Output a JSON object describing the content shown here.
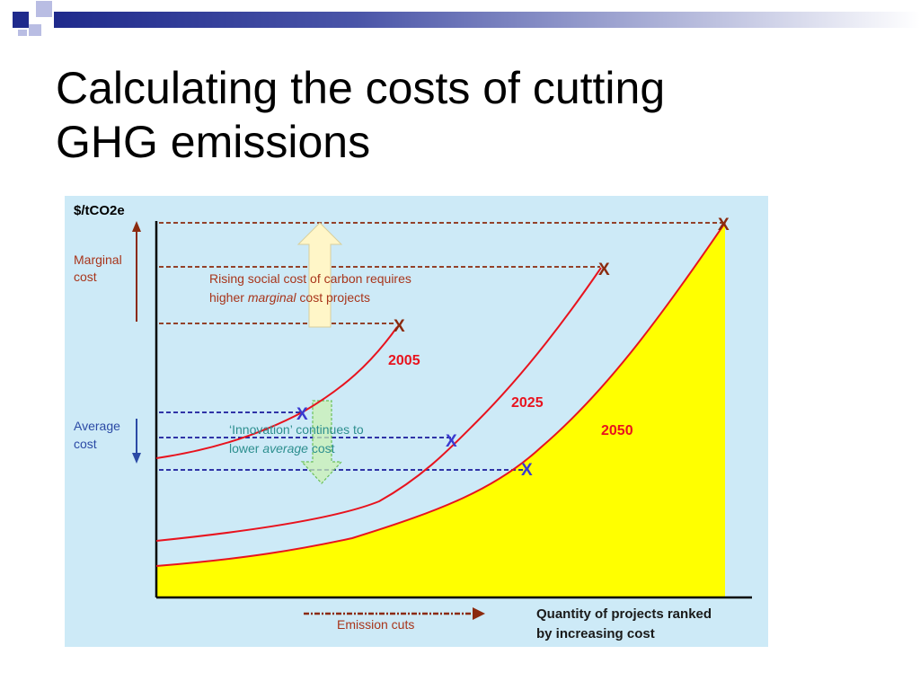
{
  "slide": {
    "title_line1": "Calculating the costs of cutting",
    "title_line2": "GHG emissions"
  },
  "figure": {
    "y_axis_label": "$/tCO2e",
    "marginal_cost_line1": "Marginal",
    "marginal_cost_line2": "cost",
    "average_cost_line1": "Average",
    "average_cost_line2": "cost",
    "rising_note_line1": "Rising social cost of carbon requires",
    "rising_note_line2_pre": "higher ",
    "rising_note_line2_em": "marginal",
    "rising_note_line2_post": " cost projects",
    "innovation_note_line1": "‘Innovation’ continues to",
    "innovation_note_line2_pre": "lower ",
    "innovation_note_line2_em": "average",
    "innovation_note_line2_post": " cost",
    "curve_2005": "2005",
    "curve_2025": "2025",
    "curve_2050": "2050",
    "marker": "X",
    "x_axis_line1": "Quantity of projects ranked",
    "x_axis_line2": "by increasing cost",
    "emission_cuts": "Emission cuts",
    "colors": {
      "background": "#cdeaf7",
      "curve": "#e8131e",
      "fill_2050": "#ffff00",
      "marginal_dash": "#8b2a0e",
      "average_dash": "#1a1a9c",
      "average_marker": "#3a3acf",
      "label_brown": "#a8351b",
      "label_blue": "#2b4aa5",
      "label_teal": "#2d8f8f"
    }
  }
}
